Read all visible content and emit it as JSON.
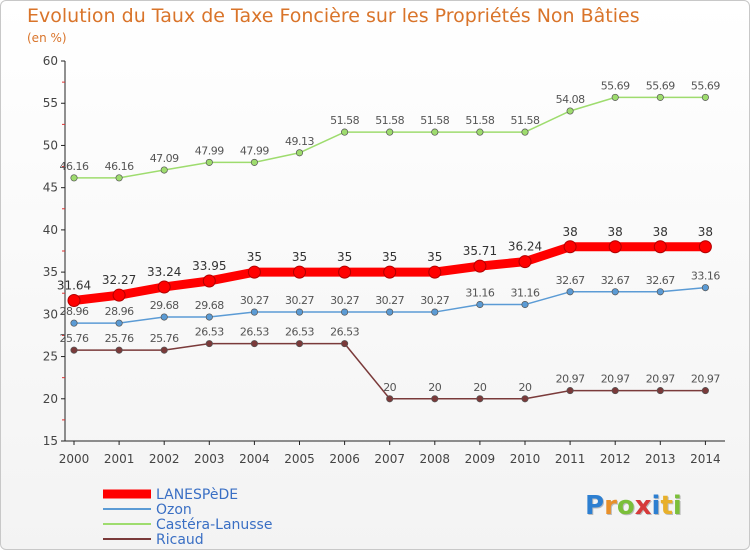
{
  "title": "Evolution du Taux de Taxe Foncière sur les Propriétés Non Bâties",
  "subtitle": "(en %)",
  "logo_text": "Proxiti",
  "chart_data": {
    "type": "line",
    "x": [
      "2000",
      "2001",
      "2002",
      "2003",
      "2004",
      "2005",
      "2006",
      "2007",
      "2008",
      "2009",
      "2010",
      "2011",
      "2012",
      "2013",
      "2014"
    ],
    "ylim": [
      15,
      60
    ],
    "yticks": [
      15,
      20,
      25,
      30,
      35,
      40,
      45,
      50,
      55,
      60
    ],
    "grid": false,
    "legend_position": "bottom-left",
    "series": [
      {
        "name": "LANESPèDE",
        "color": "#ff0000",
        "values": [
          31.64,
          32.27,
          33.24,
          33.95,
          35,
          35,
          35,
          35,
          35,
          35.71,
          36.24,
          38,
          38,
          38,
          38
        ],
        "labels": [
          "31.64",
          "32.27",
          "33.24",
          "33.95",
          "35",
          "35",
          "35",
          "35",
          "35",
          "35.71",
          "36.24",
          "38",
          "38",
          "38",
          "38"
        ]
      },
      {
        "name": "Ozon",
        "color": "#5b9bd5",
        "values": [
          28.96,
          28.96,
          29.68,
          29.68,
          30.27,
          30.27,
          30.27,
          30.27,
          30.27,
          31.16,
          31.16,
          32.67,
          32.67,
          32.67,
          33.16
        ],
        "labels": [
          "28.96",
          "28.96",
          "29.68",
          "29.68",
          "30.27",
          "30.27",
          "30.27",
          "30.27",
          "30.27",
          "31.16",
          "31.16",
          "32.67",
          "32.67",
          "32.67",
          "33.16"
        ]
      },
      {
        "name": "Castéra-Lanusse",
        "color": "#9edc6e",
        "values": [
          46.16,
          46.16,
          47.09,
          47.99,
          47.99,
          49.13,
          51.58,
          51.58,
          51.58,
          51.58,
          51.58,
          54.08,
          55.69,
          55.69,
          55.69
        ],
        "labels": [
          "46.16",
          "46.16",
          "47.09",
          "47.99",
          "47.99",
          "49.13",
          "51.58",
          "51.58",
          "51.58",
          "51.58",
          "51.58",
          "54.08",
          "55.69",
          "55.69",
          "55.69"
        ]
      },
      {
        "name": "Ricaud",
        "color": "#7a3a3a",
        "values": [
          25.76,
          25.76,
          25.76,
          26.53,
          26.53,
          26.53,
          26.53,
          20,
          20,
          20,
          20,
          20.97,
          20.97,
          20.97,
          20.97
        ],
        "labels": [
          "25.76",
          "25.76",
          "25.76",
          "26.53",
          "26.53",
          "26.53",
          "26.53",
          "20",
          "20",
          "20",
          "20",
          "20.97",
          "20.97",
          "20.97",
          "20.97"
        ]
      }
    ]
  }
}
